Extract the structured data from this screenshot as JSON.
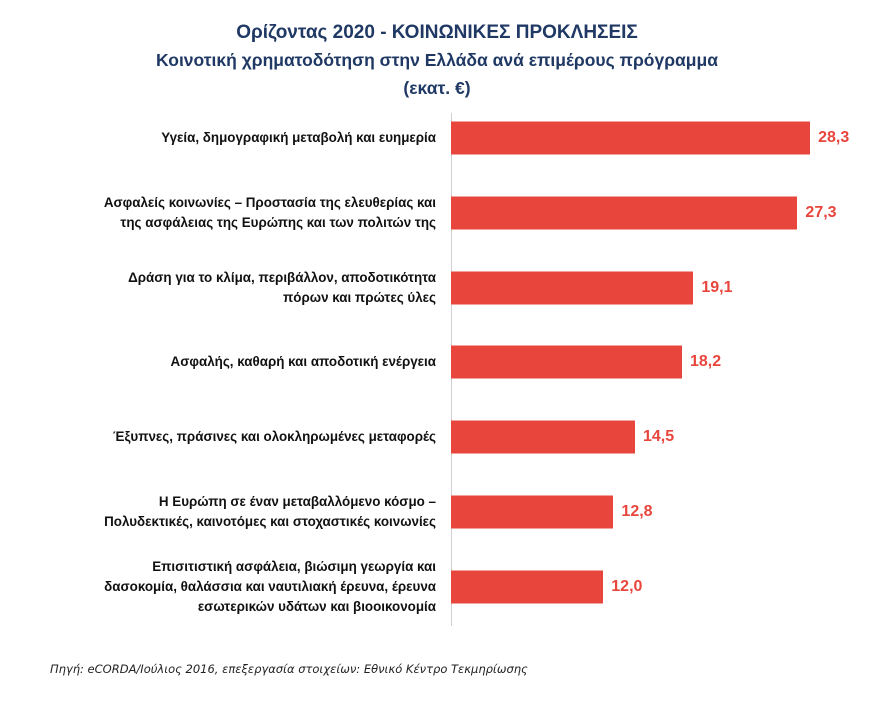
{
  "chart_data": {
    "type": "bar",
    "orientation": "horizontal",
    "title": "Ορίζοντας 2020 - ΚΟΙΝΩΝΙΚΕΣ ΠΡΟΚΛΗΣΕΙΣ",
    "subtitle": "Κοινοτική χρηματοδότηση στην Ελλάδα ανά επιμέρους πρόγραμμα",
    "unit_label": "(εκατ. €)",
    "categories": [
      "Υγεία, δημογραφική μεταβολή και ευημερία",
      "Ασφαλείς κοινωνίες – Προστασία της ελευθερίας και\nτης ασφάλειας της Ευρώπης και των πολιτών της",
      "Δράση για το κλίμα, περιβάλλον, αποδοτικότητα\nπόρων και πρώτες ύλες",
      "Ασφαλής, καθαρή και αποδοτική ενέργεια",
      "Έξυπνες, πράσινες και ολοκληρωμένες μεταφορές",
      "Η Ευρώπη σε έναν μεταβαλλόμενο κόσμο –\nΠολυδεκτικές, καινοτόμες και στοχαστικές κοινωνίες",
      "Επισιτιστική ασφάλεια, βιώσιμη γεωργία και\nδασοκομία, θαλάσσια και ναυτιλιακή έρευνα, έρευνα\nεσωτερικών υδάτων και βιοοικονομία"
    ],
    "values": [
      28.3,
      27.3,
      19.1,
      18.2,
      14.5,
      12.8,
      12.0
    ],
    "data_labels": [
      "28,3",
      "27,3",
      "19,1",
      "18,2",
      "14,5",
      "12,8",
      "12,0"
    ],
    "xlim": [
      0,
      30
    ],
    "grid": false,
    "legend": "none",
    "bar_color": "#E8453C",
    "title_color": "#1F3864"
  },
  "source": "Πηγή: eCORDA/Ιούλιος 2016, επεξεργασία στοιχείων: Εθνικό Κέντρο Τεκμηρίωσης"
}
